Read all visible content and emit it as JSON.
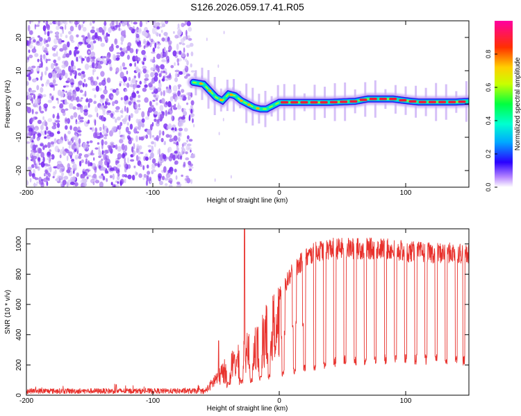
{
  "title": "S126.2026.059.17.41.R05",
  "chart_data": [
    {
      "type": "heatmap",
      "name": "spectrogram",
      "xlabel": "Height of straight line (km)",
      "ylabel": "Frequency (Hz)",
      "xlim": [
        -200,
        150
      ],
      "ylim": [
        -25,
        25
      ],
      "xticks": [
        -200,
        -100,
        0,
        100
      ],
      "yticks": [
        -20,
        -10,
        0,
        10,
        20
      ],
      "noise_region_x": [
        -200,
        -68
      ],
      "signal_track": {
        "x": [
          -68,
          -60,
          -55,
          -50,
          -45,
          -40,
          -35,
          -30,
          -25,
          -20,
          -15,
          -10,
          -5,
          0,
          10,
          20,
          40,
          60,
          70,
          80,
          90,
          100,
          110,
          120,
          130,
          140,
          150
        ],
        "freq": [
          6.5,
          6.0,
          4.0,
          2.0,
          1.0,
          3.0,
          2.5,
          1.0,
          0.0,
          -1.0,
          -1.5,
          -1.5,
          -0.5,
          0.5,
          0.5,
          0.5,
          0.5,
          0.8,
          1.5,
          1.5,
          1.5,
          1.0,
          0.6,
          0.6,
          0.6,
          0.6,
          0.8
        ]
      },
      "colorbar": {
        "label": "Normalized spectral amplitude",
        "range": [
          0,
          1
        ],
        "ticks": [
          0.0,
          0.2,
          0.4,
          0.6,
          0.8
        ]
      }
    },
    {
      "type": "line",
      "name": "snr",
      "xlabel": "Height of straight line (km)",
      "ylabel": "SNR (10 * v/v)",
      "xlim": [
        -200,
        150
      ],
      "ylim": [
        0,
        1100
      ],
      "xticks": [
        -200,
        -100,
        0,
        100
      ],
      "yticks": [
        0,
        200,
        400,
        600,
        800,
        1000
      ],
      "color": "#e8312c",
      "envelope": {
        "x": [
          -200,
          -60,
          -55,
          -50,
          -40,
          -30,
          -25,
          -20,
          -10,
          0,
          10,
          20,
          30,
          40,
          60,
          80,
          100,
          120,
          150
        ],
        "y": [
          25,
          25,
          80,
          150,
          250,
          320,
          380,
          400,
          550,
          700,
          850,
          950,
          1000,
          1020,
          1020,
          1020,
          1000,
          990,
          990
        ]
      },
      "dropout_x": [
        -40,
        -30,
        -22,
        -15,
        -8,
        3,
        12,
        20,
        28,
        36,
        44,
        52,
        60,
        68,
        76,
        84,
        92,
        100,
        108,
        116,
        124,
        132,
        140,
        146
      ],
      "dropout_floor": {
        "x": [
          -60,
          -20,
          0,
          20,
          50,
          100,
          150
        ],
        "y": [
          60,
          100,
          140,
          180,
          230,
          240,
          230
        ]
      },
      "spikes": [
        {
          "x": -27.5,
          "y": 1100
        },
        {
          "x": -48,
          "y": 360
        },
        {
          "x": -129,
          "y": 70
        }
      ]
    }
  ]
}
